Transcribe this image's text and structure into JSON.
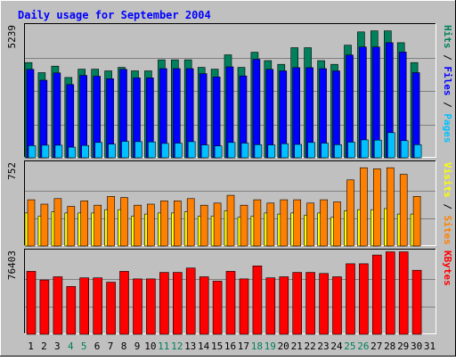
{
  "title": "Daily usage for September 2004",
  "colors": {
    "background": "#c0c0c0",
    "title": "#0000ff",
    "hits": "#00805c",
    "files": "#0000ff",
    "pages": "#00c0ff",
    "visits": "#ffff00",
    "sites": "#ff8000",
    "kbytes": "#ff0000",
    "tick_normal": "#000000",
    "tick_weekend": "#00805c"
  },
  "chart_data": [
    {
      "type": "bar",
      "panel": "hits-files-pages",
      "ymax_label": "5239",
      "ylim": [
        0,
        5239
      ],
      "right_labels": [
        {
          "text": "Pages",
          "color": "#00c0ff"
        },
        {
          "text": " / ",
          "color": "#000000"
        },
        {
          "text": "Files",
          "color": "#0000ff"
        },
        {
          "text": " / ",
          "color": "#000000"
        },
        {
          "text": "Hits",
          "color": "#00805c"
        }
      ],
      "categories": [
        "1",
        "2",
        "3",
        "4",
        "5",
        "6",
        "7",
        "8",
        "9",
        "10",
        "11",
        "12",
        "13",
        "14",
        "15",
        "16",
        "17",
        "18",
        "19",
        "20",
        "21",
        "22",
        "23",
        "24",
        "25",
        "26",
        "27",
        "28",
        "29",
        "30",
        "31"
      ],
      "series": [
        {
          "name": "Hits",
          "color": "#00805c",
          "values": [
            3780,
            3380,
            3640,
            3190,
            3520,
            3520,
            3450,
            3590,
            3450,
            3450,
            3890,
            3890,
            3890,
            3590,
            3520,
            4090,
            3590,
            4190,
            3860,
            3710,
            4370,
            4370,
            3860,
            3710,
            4470,
            5000,
            5040,
            5040,
            4570,
            3780,
            0
          ]
        },
        {
          "name": "Files",
          "color": "#0000ff",
          "values": [
            3510,
            3080,
            3370,
            2910,
            3270,
            3240,
            3140,
            3510,
            3170,
            3170,
            3540,
            3540,
            3540,
            3340,
            3210,
            3610,
            3250,
            3910,
            3510,
            3450,
            3580,
            3580,
            3540,
            3450,
            4080,
            4400,
            4400,
            4570,
            4200,
            3380,
            0
          ]
        },
        {
          "name": "Pages",
          "color": "#00c0ff",
          "values": [
            480,
            500,
            500,
            420,
            490,
            610,
            540,
            650,
            640,
            630,
            570,
            580,
            640,
            510,
            470,
            610,
            580,
            520,
            510,
            560,
            530,
            610,
            580,
            520,
            620,
            710,
            700,
            1000,
            680,
            520,
            0
          ]
        }
      ]
    },
    {
      "type": "bar",
      "panel": "visits-sites",
      "ymax_label": "752",
      "ylim": [
        0,
        752
      ],
      "right_labels": [
        {
          "text": "Sites",
          "color": "#ff8000"
        },
        {
          "text": " / ",
          "color": "#000000"
        },
        {
          "text": "Visits",
          "color": "#ffff00"
        }
      ],
      "categories": [
        "1",
        "2",
        "3",
        "4",
        "5",
        "6",
        "7",
        "8",
        "9",
        "10",
        "11",
        "12",
        "13",
        "14",
        "15",
        "16",
        "17",
        "18",
        "19",
        "20",
        "21",
        "22",
        "23",
        "24",
        "25",
        "26",
        "27",
        "28",
        "29",
        "30",
        "31"
      ],
      "series": [
        {
          "name": "Visits",
          "color": "#ffff00",
          "values": [
            300,
            270,
            310,
            300,
            300,
            300,
            330,
            330,
            270,
            290,
            300,
            300,
            310,
            270,
            270,
            320,
            260,
            270,
            300,
            290,
            300,
            280,
            300,
            260,
            320,
            330,
            330,
            340,
            290,
            290,
            0
          ]
        },
        {
          "name": "Sites",
          "color": "#ff8000",
          "values": [
            420,
            380,
            430,
            360,
            410,
            370,
            450,
            440,
            370,
            380,
            410,
            410,
            430,
            370,
            390,
            460,
            370,
            420,
            390,
            420,
            420,
            390,
            420,
            400,
            600,
            710,
            700,
            710,
            650,
            450,
            0
          ]
        }
      ]
    },
    {
      "type": "bar",
      "panel": "kbytes",
      "ymax_label": "76403",
      "ylim": [
        0,
        76403
      ],
      "right_labels": [
        {
          "text": "KBytes",
          "color": "#ff0000"
        }
      ],
      "categories": [
        "1",
        "2",
        "3",
        "4",
        "5",
        "6",
        "7",
        "8",
        "9",
        "10",
        "11",
        "12",
        "13",
        "14",
        "15",
        "16",
        "17",
        "18",
        "19",
        "20",
        "21",
        "22",
        "23",
        "24",
        "25",
        "26",
        "27",
        "28",
        "29",
        "30",
        "31"
      ],
      "series": [
        {
          "name": "KBytes",
          "color": "#ff0000",
          "values": [
            58000,
            50000,
            53000,
            44000,
            52000,
            52000,
            48000,
            58000,
            51000,
            51000,
            57000,
            57000,
            61000,
            53000,
            49000,
            58000,
            51000,
            63000,
            52000,
            53000,
            57000,
            57000,
            56000,
            53000,
            65000,
            65000,
            73000,
            76000,
            76000,
            59000,
            0
          ]
        }
      ]
    }
  ],
  "x_ticks": [
    {
      "label": "1",
      "weekend": false
    },
    {
      "label": "2",
      "weekend": false
    },
    {
      "label": "3",
      "weekend": false
    },
    {
      "label": "4",
      "weekend": true
    },
    {
      "label": "5",
      "weekend": true
    },
    {
      "label": "6",
      "weekend": false
    },
    {
      "label": "7",
      "weekend": false
    },
    {
      "label": "8",
      "weekend": false
    },
    {
      "label": "9",
      "weekend": false
    },
    {
      "label": "10",
      "weekend": false
    },
    {
      "label": "11",
      "weekend": true
    },
    {
      "label": "12",
      "weekend": true
    },
    {
      "label": "13",
      "weekend": false
    },
    {
      "label": "14",
      "weekend": false
    },
    {
      "label": "15",
      "weekend": false
    },
    {
      "label": "16",
      "weekend": false
    },
    {
      "label": "17",
      "weekend": false
    },
    {
      "label": "18",
      "weekend": true
    },
    {
      "label": "19",
      "weekend": true
    },
    {
      "label": "20",
      "weekend": false
    },
    {
      "label": "21",
      "weekend": false
    },
    {
      "label": "22",
      "weekend": false
    },
    {
      "label": "23",
      "weekend": false
    },
    {
      "label": "24",
      "weekend": false
    },
    {
      "label": "25",
      "weekend": true
    },
    {
      "label": "26",
      "weekend": true
    },
    {
      "label": "27",
      "weekend": false
    },
    {
      "label": "28",
      "weekend": false
    },
    {
      "label": "29",
      "weekend": false
    },
    {
      "label": "30",
      "weekend": false
    },
    {
      "label": "31",
      "weekend": false
    }
  ]
}
